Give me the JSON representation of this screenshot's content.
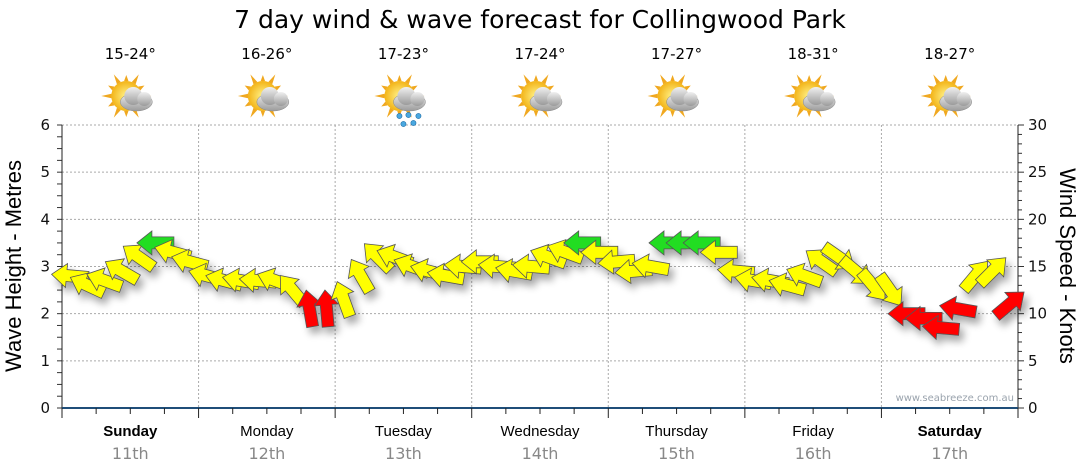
{
  "chart_data": {
    "type": "scatter",
    "title": "7 day wind & wave forecast for Collingwood Park",
    "ylabel_left": "Wave Height - Metres",
    "ylabel_right": "Wind Speed - Knots",
    "ylim_left": [
      0,
      6
    ],
    "ylim_right": [
      0,
      30
    ],
    "left_ticks": [
      "0",
      "1",
      "2",
      "3",
      "4",
      "5",
      "6"
    ],
    "right_ticks": [
      "0",
      "5",
      "10",
      "15",
      "20",
      "25",
      "30"
    ],
    "grid": true,
    "watermark": "www.seabreeze.com.au",
    "days": [
      {
        "name": "Sunday",
        "date": "11th",
        "temp": "15-24°",
        "icon": "partly-cloudy-icon",
        "bold": true
      },
      {
        "name": "Monday",
        "date": "12th",
        "temp": "16-26°",
        "icon": "partly-cloudy-icon",
        "bold": false
      },
      {
        "name": "Tuesday",
        "date": "13th",
        "temp": "17-23°",
        "icon": "showers-icon",
        "bold": false
      },
      {
        "name": "Wednesday",
        "date": "14th",
        "temp": "17-24°",
        "icon": "partly-cloudy-icon",
        "bold": false
      },
      {
        "name": "Thursday",
        "date": "15th",
        "temp": "17-27°",
        "icon": "partly-cloudy-icon",
        "bold": false
      },
      {
        "name": "Friday",
        "date": "16th",
        "temp": "18-31°",
        "icon": "partly-cloudy-icon",
        "bold": false
      },
      {
        "name": "Saturday",
        "date": "17th",
        "temp": "18-27°",
        "icon": "partly-cloudy-icon",
        "bold": true
      }
    ],
    "wind_interval_hours": 3,
    "wind_speed_knots": [
      14,
      13,
      13.5,
      14.5,
      16,
      17.5,
      16.5,
      15.5,
      14,
      13.5,
      13.5,
      13.5,
      13.5,
      12.5,
      10.5,
      10.5,
      11.5,
      14,
      16,
      16,
      15,
      14.5,
      14,
      15,
      15.5,
      15,
      14.5,
      15,
      16,
      16.5,
      17.5,
      16.5,
      15.5,
      14.5,
      15,
      17.5,
      17.5,
      17.5,
      16.5,
      14.5,
      13.5,
      13.5,
      13,
      14,
      15.5,
      16,
      14.5,
      13,
      12.5,
      10,
      9.5,
      8.5,
      10.5,
      14,
      14.5,
      11
    ],
    "wind_arrow_direction_deg": [
      185,
      205,
      200,
      210,
      215,
      180,
      195,
      195,
      195,
      195,
      190,
      185,
      200,
      230,
      260,
      265,
      250,
      240,
      225,
      200,
      200,
      195,
      190,
      185,
      180,
      185,
      190,
      185,
      200,
      200,
      180,
      180,
      175,
      175,
      190,
      180,
      180,
      180,
      180,
      185,
      190,
      190,
      195,
      200,
      215,
      35,
      40,
      50,
      55,
      180,
      180,
      185,
      190,
      310,
      315,
      320
    ],
    "color_scale": {
      "light": "#ff0000",
      "moderate": "#ffff00",
      "strong": "#22dd22",
      "light_below_knots": 11.5,
      "strong_from_knots": 17.5
    }
  }
}
